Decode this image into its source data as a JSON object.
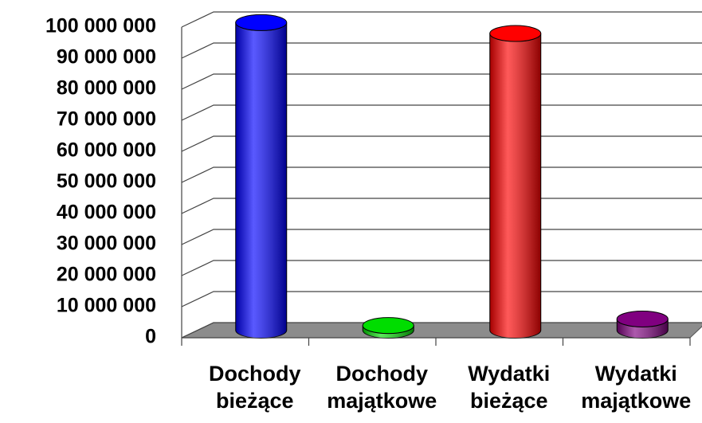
{
  "chart_data": {
    "type": "bar",
    "categories": [
      "Dochody bieżące",
      "Dochody majątkowe",
      "Wydatki bieżące",
      "Wydatki majątkowe"
    ],
    "values": [
      99000000,
      1500000,
      95500000,
      3600000
    ],
    "colors": [
      "#0000ff",
      "#00dd00",
      "#ff0000",
      "#800080"
    ],
    "ylim": [
      0,
      100000000
    ],
    "yticks": [
      0,
      {
        "value": 10000000,
        "label": "10 000 000"
      },
      {
        "value": 20000000,
        "label": "20 000 000"
      },
      {
        "value": 30000000,
        "label": "30 000 000"
      },
      {
        "value": 40000000,
        "label": "40 000 000"
      },
      {
        "value": 50000000,
        "label": "50 000 000"
      },
      {
        "value": 60000000,
        "label": "60 000 000"
      },
      {
        "value": 70000000,
        "label": "70 000 000"
      },
      {
        "value": 80000000,
        "label": "80 000 000"
      },
      {
        "value": 90000000,
        "label": "90 000 000"
      },
      {
        "value": 100000000,
        "label": "100 000 000"
      }
    ],
    "grid": true
  }
}
